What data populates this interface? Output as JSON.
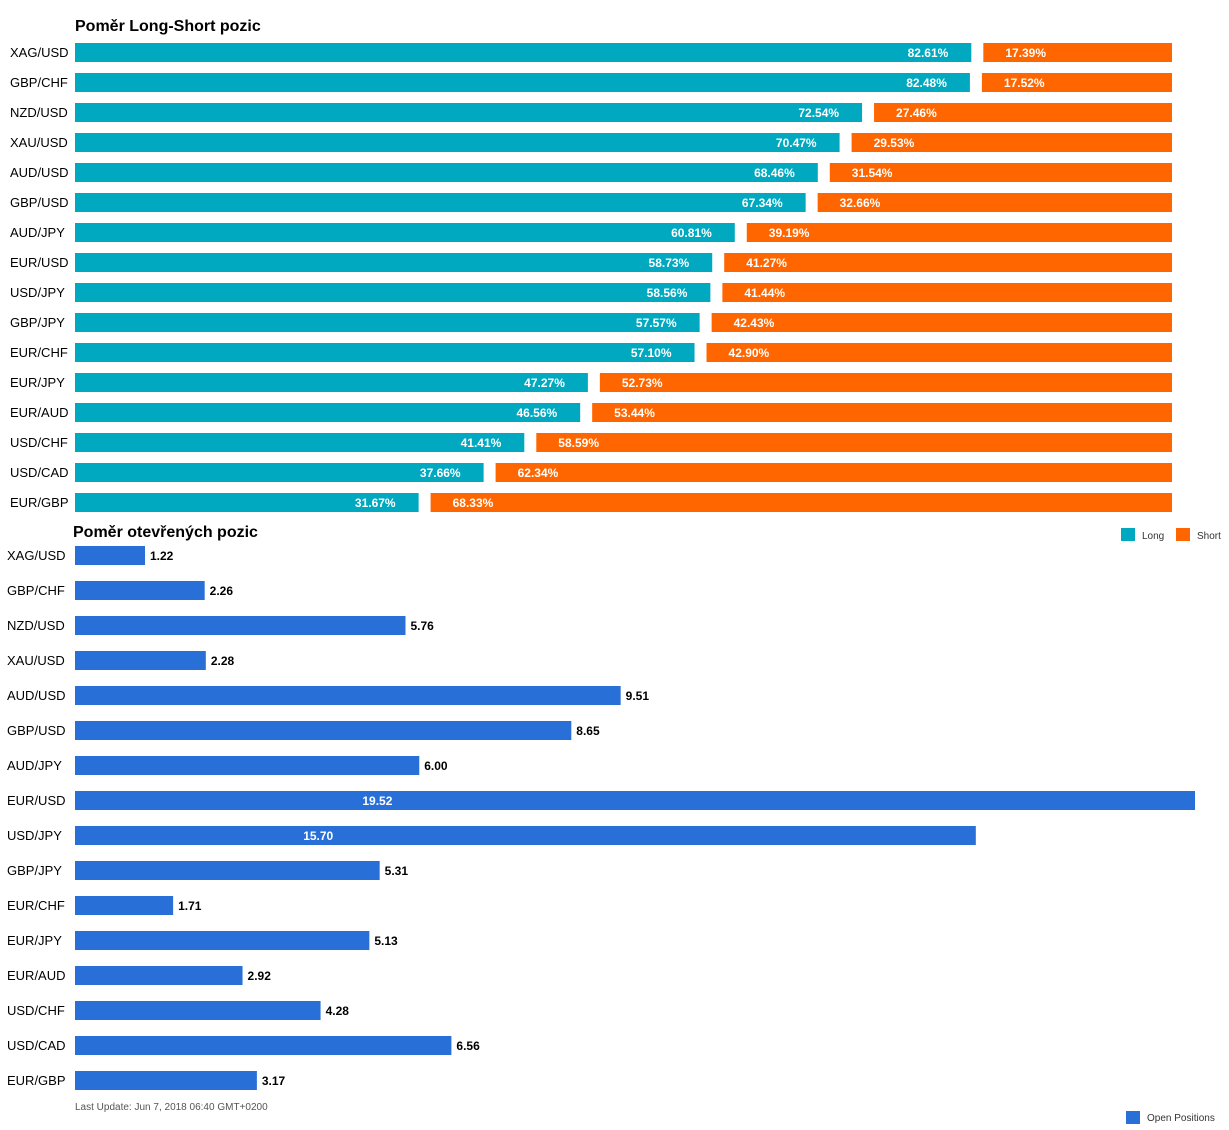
{
  "colors": {
    "long": "#00a8c0",
    "short": "#ff6600",
    "open_positions": "#2870d8"
  },
  "chart_data": [
    {
      "type": "bar",
      "orientation": "horizontal",
      "stacked": true,
      "title": "Poměr Long-Short pozic",
      "categories": [
        "XAG/USD",
        "GBP/CHF",
        "NZD/USD",
        "XAU/USD",
        "AUD/USD",
        "GBP/USD",
        "AUD/JPY",
        "EUR/USD",
        "USD/JPY",
        "GBP/JPY",
        "EUR/CHF",
        "EUR/JPY",
        "EUR/AUD",
        "USD/CHF",
        "USD/CAD",
        "EUR/GBP"
      ],
      "series": [
        {
          "name": "Long",
          "values": [
            82.61,
            82.48,
            72.54,
            70.47,
            68.46,
            67.34,
            60.81,
            58.73,
            58.56,
            57.57,
            57.1,
            47.27,
            46.56,
            41.41,
            37.66,
            31.67
          ],
          "labels": [
            "82.61%",
            "82.48%",
            "72.54%",
            "70.47%",
            "68.46%",
            "67.34%",
            "60.81%",
            "58.73%",
            "58.56%",
            "57.57%",
            "57.10%",
            "47.27%",
            "46.56%",
            "41.41%",
            "37.66%",
            "31.67%"
          ]
        },
        {
          "name": "Short",
          "values": [
            17.39,
            17.52,
            27.46,
            29.53,
            31.54,
            32.66,
            39.19,
            41.27,
            41.44,
            42.43,
            42.9,
            52.73,
            53.44,
            58.59,
            62.34,
            68.33
          ],
          "labels": [
            "17.39%",
            "17.52%",
            "27.46%",
            "29.53%",
            "31.54%",
            "32.66%",
            "39.19%",
            "41.27%",
            "41.44%",
            "42.43%",
            "42.90%",
            "52.73%",
            "53.44%",
            "58.59%",
            "62.34%",
            "68.33%"
          ]
        }
      ],
      "xlim": [
        0,
        100
      ],
      "grid": false,
      "legend_position": "bottom-right"
    },
    {
      "type": "bar",
      "orientation": "horizontal",
      "title": "Poměr otevřených pozic",
      "categories": [
        "XAG/USD",
        "GBP/CHF",
        "NZD/USD",
        "XAU/USD",
        "AUD/USD",
        "GBP/USD",
        "AUD/JPY",
        "EUR/USD",
        "USD/JPY",
        "GBP/JPY",
        "EUR/CHF",
        "EUR/JPY",
        "EUR/AUD",
        "USD/CHF",
        "USD/CAD",
        "EUR/GBP"
      ],
      "series": [
        {
          "name": "Open Positions",
          "values": [
            1.22,
            2.26,
            5.76,
            2.28,
            9.51,
            8.65,
            6.0,
            19.52,
            15.7,
            5.31,
            1.71,
            5.13,
            2.92,
            4.28,
            6.56,
            3.17
          ],
          "labels": [
            "1.22",
            "2.26",
            "5.76",
            "2.28",
            "9.51",
            "8.65",
            "6.00",
            "19.52",
            "15.70",
            "5.31",
            "1.71",
            "5.13",
            "2.92",
            "4.28",
            "6.56",
            "3.17"
          ]
        }
      ],
      "xlim": [
        0,
        19.52
      ],
      "grid": false,
      "legend_position": "bottom-right"
    }
  ],
  "footer": {
    "last_update": "Last Update: Jun 7, 2018 06:40 GMT+0200"
  }
}
